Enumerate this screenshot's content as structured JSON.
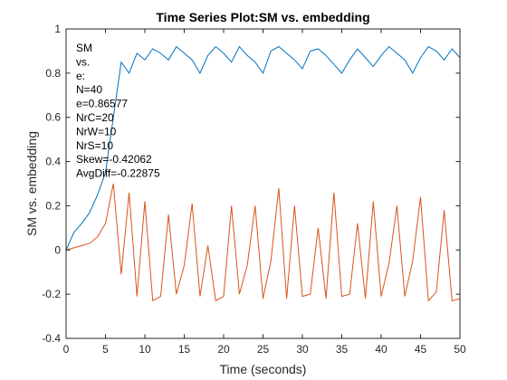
{
  "chart_data": {
    "type": "line",
    "title": "Time Series Plot:SM vs. embedding",
    "xlabel": "Time (seconds)",
    "ylabel": "SM vs. embedding",
    "xlim": [
      0,
      50
    ],
    "ylim": [
      -0.4,
      1
    ],
    "xticks": [
      0,
      5,
      10,
      15,
      20,
      25,
      30,
      35,
      40,
      45,
      50
    ],
    "yticks": [
      -0.4,
      -0.2,
      0,
      0.2,
      0.4,
      0.6,
      0.8,
      1
    ],
    "ytick_labels": [
      "-0.4",
      "-0.2",
      "0",
      "0.2",
      "0.4",
      "0.6",
      "0.8",
      "1"
    ],
    "grid": false,
    "annotation_lines": [
      "SM",
      "vs.",
      "e:",
      "N=40",
      "e=0.86577",
      "NrC=20",
      "NrW=10",
      "NrS=10",
      "Skew=-0.42062",
      "AvgDiff=-0.22875"
    ],
    "series": [
      {
        "color": "#0072BD",
        "x": [
          0,
          1,
          2,
          3,
          4,
          5,
          6,
          7,
          8,
          9,
          10,
          11,
          12,
          13,
          14,
          15,
          16,
          17,
          18,
          19,
          20,
          21,
          22,
          23,
          24,
          25,
          26,
          27,
          28,
          29,
          30,
          31,
          32,
          33,
          34,
          35,
          36,
          37,
          38,
          39,
          40,
          41,
          42,
          43,
          44,
          45,
          46,
          47,
          48,
          49,
          50
        ],
        "values": [
          0.0,
          0.08,
          0.12,
          0.17,
          0.25,
          0.35,
          0.6,
          0.85,
          0.8,
          0.89,
          0.86,
          0.91,
          0.89,
          0.86,
          0.92,
          0.89,
          0.86,
          0.8,
          0.88,
          0.92,
          0.89,
          0.85,
          0.92,
          0.88,
          0.85,
          0.8,
          0.9,
          0.92,
          0.89,
          0.86,
          0.82,
          0.9,
          0.91,
          0.88,
          0.84,
          0.8,
          0.86,
          0.91,
          0.87,
          0.83,
          0.88,
          0.92,
          0.89,
          0.86,
          0.8,
          0.87,
          0.92,
          0.9,
          0.86,
          0.91,
          0.87
        ]
      },
      {
        "color": "#D95319",
        "x": [
          0,
          1,
          2,
          3,
          4,
          5,
          6,
          7,
          8,
          9,
          10,
          11,
          12,
          13,
          14,
          15,
          16,
          17,
          18,
          19,
          20,
          21,
          22,
          23,
          24,
          25,
          26,
          27,
          28,
          29,
          30,
          31,
          32,
          33,
          34,
          35,
          36,
          37,
          38,
          39,
          40,
          41,
          42,
          43,
          44,
          45,
          46,
          47,
          48,
          49,
          50
        ],
        "values": [
          0.0,
          0.01,
          0.02,
          0.03,
          0.06,
          0.12,
          0.3,
          -0.11,
          0.26,
          -0.21,
          0.22,
          -0.23,
          -0.21,
          0.16,
          -0.2,
          -0.07,
          0.21,
          -0.21,
          0.02,
          -0.23,
          -0.21,
          0.2,
          -0.2,
          -0.07,
          0.2,
          -0.22,
          -0.05,
          0.28,
          -0.22,
          0.2,
          -0.21,
          -0.2,
          0.1,
          -0.22,
          0.26,
          -0.21,
          -0.2,
          0.12,
          -0.22,
          0.22,
          -0.21,
          -0.06,
          0.2,
          -0.21,
          -0.05,
          0.24,
          -0.23,
          -0.19,
          0.18,
          -0.23,
          -0.22
        ]
      }
    ]
  }
}
